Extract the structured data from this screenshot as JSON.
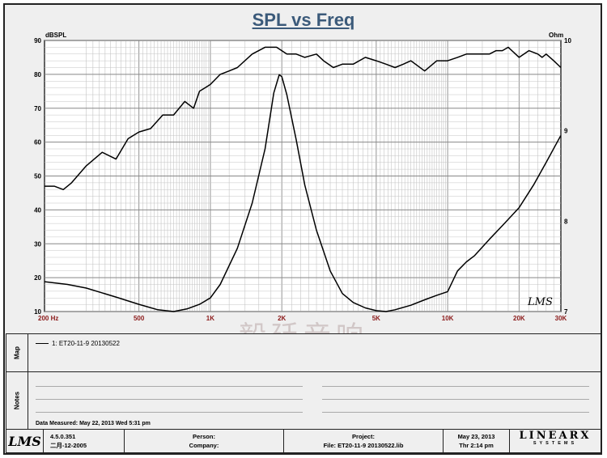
{
  "title": "SPL vs Freq",
  "chart_data": {
    "type": "line",
    "title": "SPL vs Freq",
    "ylabel_left": "dBSPL",
    "ylabel_right": "Ohm",
    "xscale": "log",
    "xlim": [
      200,
      30000
    ],
    "ylim_left": [
      10,
      90
    ],
    "ylim_right": [
      7,
      10
    ],
    "grid": true,
    "x_tick_labels": [
      "200 Hz",
      "500",
      "1K",
      "2K",
      "5K",
      "10K",
      "20K",
      "30K"
    ],
    "x_tick_values": [
      200,
      500,
      1000,
      2000,
      5000,
      10000,
      20000,
      30000
    ],
    "y_left_ticks": [
      10,
      20,
      30,
      40,
      50,
      60,
      70,
      80,
      90
    ],
    "y_right_tick_labels": [
      "7",
      "8",
      "9",
      "10"
    ],
    "y_right_tick_values": [
      7,
      8,
      9,
      10
    ],
    "series": [
      {
        "axis": "left",
        "color": "#000000",
        "x": [
          200,
          220,
          240,
          260,
          300,
          350,
          400,
          450,
          500,
          560,
          630,
          700,
          780,
          850,
          900,
          1000,
          1100,
          1200,
          1300,
          1500,
          1700,
          1900,
          2100,
          2300,
          2500,
          2800,
          3000,
          3300,
          3600,
          4000,
          4500,
          5000,
          5500,
          6000,
          6500,
          7000,
          8000,
          9000,
          10000,
          11000,
          12000,
          13000,
          15000,
          16000,
          17000,
          18000,
          20000,
          22000,
          24000,
          25000,
          26000,
          28000,
          30000
        ],
        "y": [
          47,
          47,
          46,
          48,
          53,
          57,
          55,
          61,
          63,
          64,
          68,
          68,
          72,
          70,
          75,
          77,
          80,
          81,
          82,
          86,
          88,
          88,
          86,
          86,
          85,
          86,
          84,
          82,
          83,
          83,
          85,
          84,
          83,
          82,
          83,
          84,
          81,
          84,
          84,
          85,
          86,
          86,
          86,
          87,
          87,
          88,
          85,
          87,
          86,
          85,
          86,
          84,
          82
        ]
      },
      {
        "axis": "right",
        "color": "#000000",
        "x": [
          200,
          250,
          300,
          400,
          500,
          600,
          700,
          800,
          900,
          1000,
          1100,
          1300,
          1500,
          1700,
          1850,
          1950,
          2000,
          2100,
          2300,
          2500,
          2800,
          3200,
          3600,
          4000,
          4500,
          5000,
          5500,
          6000,
          7000,
          8000,
          9000,
          10000,
          11000,
          12000,
          13000,
          15000,
          17000,
          20000,
          23000,
          26000,
          30000
        ],
        "y": [
          7.33,
          7.3,
          7.26,
          7.16,
          7.08,
          7.02,
          7.0,
          7.03,
          7.08,
          7.15,
          7.3,
          7.7,
          8.2,
          8.8,
          9.42,
          9.62,
          9.6,
          9.4,
          8.9,
          8.4,
          7.9,
          7.45,
          7.2,
          7.1,
          7.04,
          7.01,
          7.0,
          7.02,
          7.07,
          7.13,
          7.18,
          7.22,
          7.45,
          7.55,
          7.62,
          7.8,
          7.95,
          8.15,
          8.4,
          8.65,
          8.95
        ]
      }
    ]
  },
  "watermark": "毅廷音响",
  "corner_logo": "LMS",
  "map": {
    "label": "Map",
    "entry": "1: ET20-11-9  20130522"
  },
  "notes": {
    "label": "Notes",
    "date_measured": "Data Measured: May 22, 2013  Wed  5:31 pm"
  },
  "footer": {
    "logo": "LMS",
    "version": "4.5.0.351",
    "build_date": "二月-12-2005",
    "person_label": "Person:",
    "company_label": "Company:",
    "project_label": "Project:",
    "file_label": "File: ET20-11-9 20130522.lib",
    "print_date": "May 23, 2013",
    "print_time": "Thr  2:14 pm",
    "brand": "LINEARX",
    "brand_sub": "SYSTEMS"
  }
}
